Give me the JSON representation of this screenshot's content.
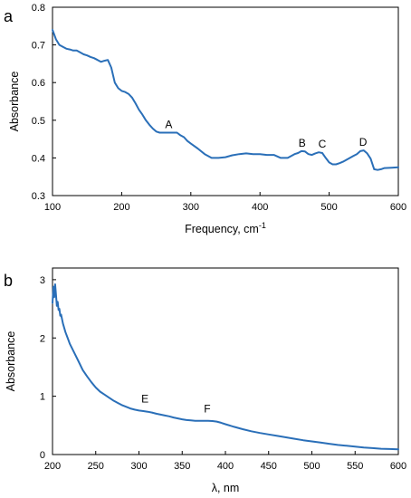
{
  "chart_data": [
    {
      "panel": "a",
      "type": "line",
      "xlabel": "Frequency, cm",
      "xlabel_sup": "-1",
      "ylabel": "Absorbance",
      "xlim": [
        100,
        600
      ],
      "ylim": [
        0.3,
        0.8
      ],
      "xticks": [
        "100",
        "200",
        "300",
        "400",
        "500",
        "600"
      ],
      "yticks": [
        "0.3",
        "0.4",
        "0.5",
        "0.6",
        "0.7",
        "0.8"
      ],
      "grid": false,
      "color": "#2a6fb8",
      "series": [
        {
          "x": [
            100,
            105,
            110,
            115,
            120,
            125,
            130,
            135,
            140,
            145,
            150,
            155,
            160,
            165,
            170,
            175,
            180,
            185,
            190,
            195,
            200,
            205,
            210,
            215,
            220,
            225,
            230,
            235,
            240,
            245,
            250,
            255,
            260,
            265,
            270,
            275,
            280,
            285,
            290,
            295,
            300,
            310,
            320,
            330,
            340,
            350,
            360,
            370,
            380,
            390,
            400,
            410,
            420,
            430,
            440,
            450,
            455,
            460,
            465,
            470,
            475,
            480,
            485,
            490,
            495,
            500,
            505,
            510,
            515,
            520,
            525,
            530,
            535,
            540,
            545,
            550,
            555,
            560,
            565,
            570,
            575,
            580,
            590,
            600
          ],
          "y": [
            0.74,
            0.715,
            0.7,
            0.695,
            0.69,
            0.688,
            0.685,
            0.685,
            0.68,
            0.675,
            0.672,
            0.668,
            0.665,
            0.66,
            0.655,
            0.658,
            0.66,
            0.64,
            0.6,
            0.585,
            0.578,
            0.575,
            0.57,
            0.56,
            0.545,
            0.528,
            0.515,
            0.5,
            0.488,
            0.478,
            0.47,
            0.467,
            0.467,
            0.467,
            0.467,
            0.467,
            0.467,
            0.46,
            0.455,
            0.445,
            0.438,
            0.425,
            0.41,
            0.4,
            0.4,
            0.402,
            0.407,
            0.41,
            0.412,
            0.41,
            0.41,
            0.408,
            0.408,
            0.4,
            0.4,
            0.41,
            0.413,
            0.418,
            0.417,
            0.41,
            0.408,
            0.412,
            0.415,
            0.413,
            0.4,
            0.388,
            0.383,
            0.383,
            0.386,
            0.39,
            0.395,
            0.4,
            0.405,
            0.41,
            0.418,
            0.42,
            0.412,
            0.398,
            0.37,
            0.368,
            0.37,
            0.373,
            0.374,
            0.375
          ]
        }
      ],
      "annotations": [
        {
          "label": "A",
          "x": 268,
          "y": 0.47
        },
        {
          "label": "B",
          "x": 461,
          "y": 0.42
        },
        {
          "label": "C",
          "x": 490,
          "y": 0.418
        },
        {
          "label": "D",
          "x": 549,
          "y": 0.422
        }
      ]
    },
    {
      "panel": "b",
      "type": "line",
      "xlabel": "λ, nm",
      "ylabel": "Absorbance",
      "xlim": [
        200,
        600
      ],
      "ylim": [
        0,
        3.2
      ],
      "xticks": [
        "200",
        "250",
        "300",
        "350",
        "400",
        "450",
        "500",
        "550",
        "600"
      ],
      "yticks": [
        "0",
        "1",
        "2",
        "3"
      ],
      "grid": false,
      "color": "#2a6fb8",
      "series": [
        {
          "x": [
            200,
            201,
            202,
            203,
            204,
            205,
            206,
            207,
            208,
            209,
            210,
            212,
            215,
            218,
            220,
            225,
            230,
            235,
            240,
            245,
            250,
            255,
            260,
            265,
            270,
            275,
            280,
            285,
            290,
            295,
            300,
            305,
            310,
            315,
            320,
            325,
            330,
            335,
            340,
            345,
            350,
            355,
            360,
            365,
            370,
            375,
            380,
            385,
            390,
            395,
            400,
            410,
            420,
            430,
            440,
            450,
            460,
            470,
            480,
            490,
            500,
            510,
            520,
            530,
            540,
            550,
            560,
            570,
            580,
            590,
            600
          ],
          "y": [
            2.6,
            2.88,
            2.7,
            2.92,
            2.75,
            2.55,
            2.62,
            2.48,
            2.5,
            2.38,
            2.4,
            2.25,
            2.1,
            1.98,
            1.9,
            1.75,
            1.6,
            1.45,
            1.34,
            1.24,
            1.15,
            1.08,
            1.03,
            0.98,
            0.93,
            0.89,
            0.85,
            0.82,
            0.79,
            0.77,
            0.755,
            0.745,
            0.735,
            0.72,
            0.7,
            0.685,
            0.67,
            0.655,
            0.635,
            0.62,
            0.605,
            0.592,
            0.585,
            0.58,
            0.58,
            0.58,
            0.58,
            0.575,
            0.565,
            0.545,
            0.52,
            0.475,
            0.435,
            0.4,
            0.37,
            0.345,
            0.32,
            0.295,
            0.27,
            0.245,
            0.225,
            0.205,
            0.185,
            0.165,
            0.15,
            0.135,
            0.12,
            0.11,
            0.1,
            0.095,
            0.09
          ]
        }
      ],
      "annotations": [
        {
          "label": "E",
          "x": 307,
          "y": 0.83
        },
        {
          "label": "F",
          "x": 379,
          "y": 0.66
        }
      ]
    }
  ]
}
